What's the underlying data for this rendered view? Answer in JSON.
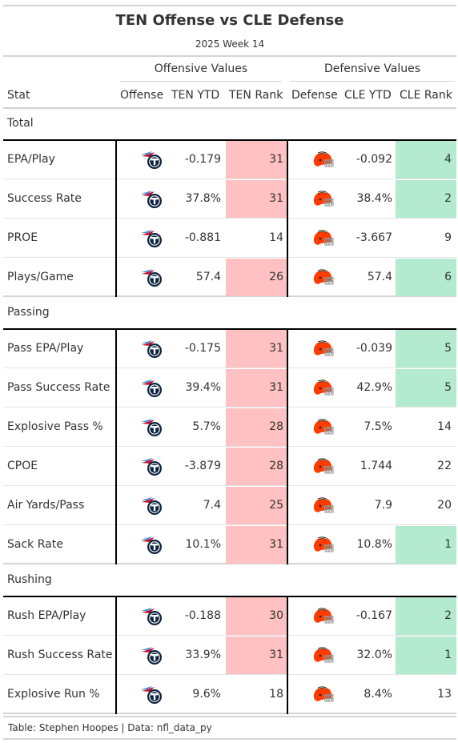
{
  "title": "TEN Offense vs CLE Defense",
  "subtitle": "2025 Week 14",
  "spanners": {
    "offense": "Offensive Values",
    "defense": "Defensive Values"
  },
  "columns": {
    "stat": "Stat",
    "offense": "Offense",
    "ten_ytd": "TEN YTD",
    "ten_rank": "TEN Rank",
    "defense": "Defense",
    "cle_ytd": "CLE YTD",
    "cle_rank": "CLE Rank"
  },
  "logos": {
    "offense": "titans-logo-icon",
    "defense": "browns-helmet-icon"
  },
  "colors": {
    "bad_rank": "#ffc1c1",
    "good_rank": "#b3ead0",
    "titans_navy": "#0c2340",
    "titans_blue": "#4b92db",
    "titans_red": "#c8102e",
    "browns_orange": "#ff3c00",
    "browns_brown": "#311d00"
  },
  "groups": [
    {
      "label": "Total",
      "rows": [
        {
          "stat": "EPA/Play",
          "ten_ytd": "-0.179",
          "ten_rank": "31",
          "ten_rank_color": "bad",
          "cle_ytd": "-0.092",
          "cle_rank": "4",
          "cle_rank_color": "good"
        },
        {
          "stat": "Success Rate",
          "ten_ytd": "37.8%",
          "ten_rank": "31",
          "ten_rank_color": "bad",
          "cle_ytd": "38.4%",
          "cle_rank": "2",
          "cle_rank_color": "good"
        },
        {
          "stat": "PROE",
          "ten_ytd": "-0.881",
          "ten_rank": "14",
          "ten_rank_color": "none",
          "cle_ytd": "-3.667",
          "cle_rank": "9",
          "cle_rank_color": "none"
        },
        {
          "stat": "Plays/Game",
          "ten_ytd": "57.4",
          "ten_rank": "26",
          "ten_rank_color": "bad",
          "cle_ytd": "57.4",
          "cle_rank": "6",
          "cle_rank_color": "good"
        }
      ]
    },
    {
      "label": "Passing",
      "rows": [
        {
          "stat": "Pass EPA/Play",
          "ten_ytd": "-0.175",
          "ten_rank": "31",
          "ten_rank_color": "bad",
          "cle_ytd": "-0.039",
          "cle_rank": "5",
          "cle_rank_color": "good"
        },
        {
          "stat": "Pass Success Rate",
          "ten_ytd": "39.4%",
          "ten_rank": "31",
          "ten_rank_color": "bad",
          "cle_ytd": "42.9%",
          "cle_rank": "5",
          "cle_rank_color": "good"
        },
        {
          "stat": "Explosive Pass %",
          "ten_ytd": "5.7%",
          "ten_rank": "28",
          "ten_rank_color": "bad",
          "cle_ytd": "7.5%",
          "cle_rank": "14",
          "cle_rank_color": "none"
        },
        {
          "stat": "CPOE",
          "ten_ytd": "-3.879",
          "ten_rank": "28",
          "ten_rank_color": "bad",
          "cle_ytd": "1.744",
          "cle_rank": "22",
          "cle_rank_color": "none"
        },
        {
          "stat": "Air Yards/Pass",
          "ten_ytd": "7.4",
          "ten_rank": "25",
          "ten_rank_color": "bad",
          "cle_ytd": "7.9",
          "cle_rank": "20",
          "cle_rank_color": "none"
        },
        {
          "stat": "Sack Rate",
          "ten_ytd": "10.1%",
          "ten_rank": "31",
          "ten_rank_color": "bad",
          "cle_ytd": "10.8%",
          "cle_rank": "1",
          "cle_rank_color": "good"
        }
      ]
    },
    {
      "label": "Rushing",
      "rows": [
        {
          "stat": "Rush EPA/Play",
          "ten_ytd": "-0.188",
          "ten_rank": "30",
          "ten_rank_color": "bad",
          "cle_ytd": "-0.167",
          "cle_rank": "2",
          "cle_rank_color": "good"
        },
        {
          "stat": "Rush Success Rate",
          "ten_ytd": "33.9%",
          "ten_rank": "31",
          "ten_rank_color": "bad",
          "cle_ytd": "32.0%",
          "cle_rank": "1",
          "cle_rank_color": "good"
        },
        {
          "stat": "Explosive Run %",
          "ten_ytd": "9.6%",
          "ten_rank": "18",
          "ten_rank_color": "none",
          "cle_ytd": "8.4%",
          "cle_rank": "13",
          "cle_rank_color": "none"
        }
      ]
    }
  ],
  "footer": "Table: Stephen Hoopes | Data: nfl_data_py"
}
